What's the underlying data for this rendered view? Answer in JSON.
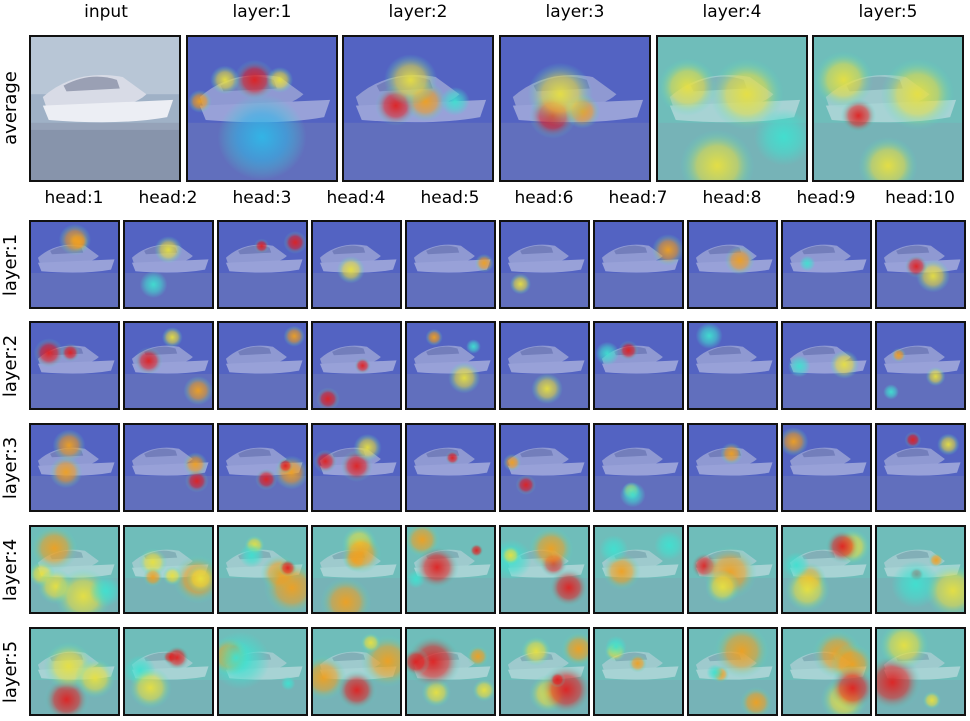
{
  "figure": {
    "top_columns": [
      "input",
      "layer:1",
      "layer:2",
      "layer:3",
      "layer:4",
      "layer:5"
    ],
    "top_row_label": "average",
    "head_columns": [
      "head:1",
      "head:2",
      "head:3",
      "head:4",
      "head:5",
      "head:6",
      "head:7",
      "head:8",
      "head:9",
      "head:10"
    ],
    "head_rows": [
      "layer:1",
      "layer:2",
      "layer:3",
      "layer:4",
      "layer:5"
    ],
    "colors": {
      "background": "#ffffff",
      "panel_border": "#111111",
      "heatmap_low": "#5060c0",
      "heatmap_mid": "#40e0d0",
      "heatmap_high": "#e02020"
    }
  }
}
